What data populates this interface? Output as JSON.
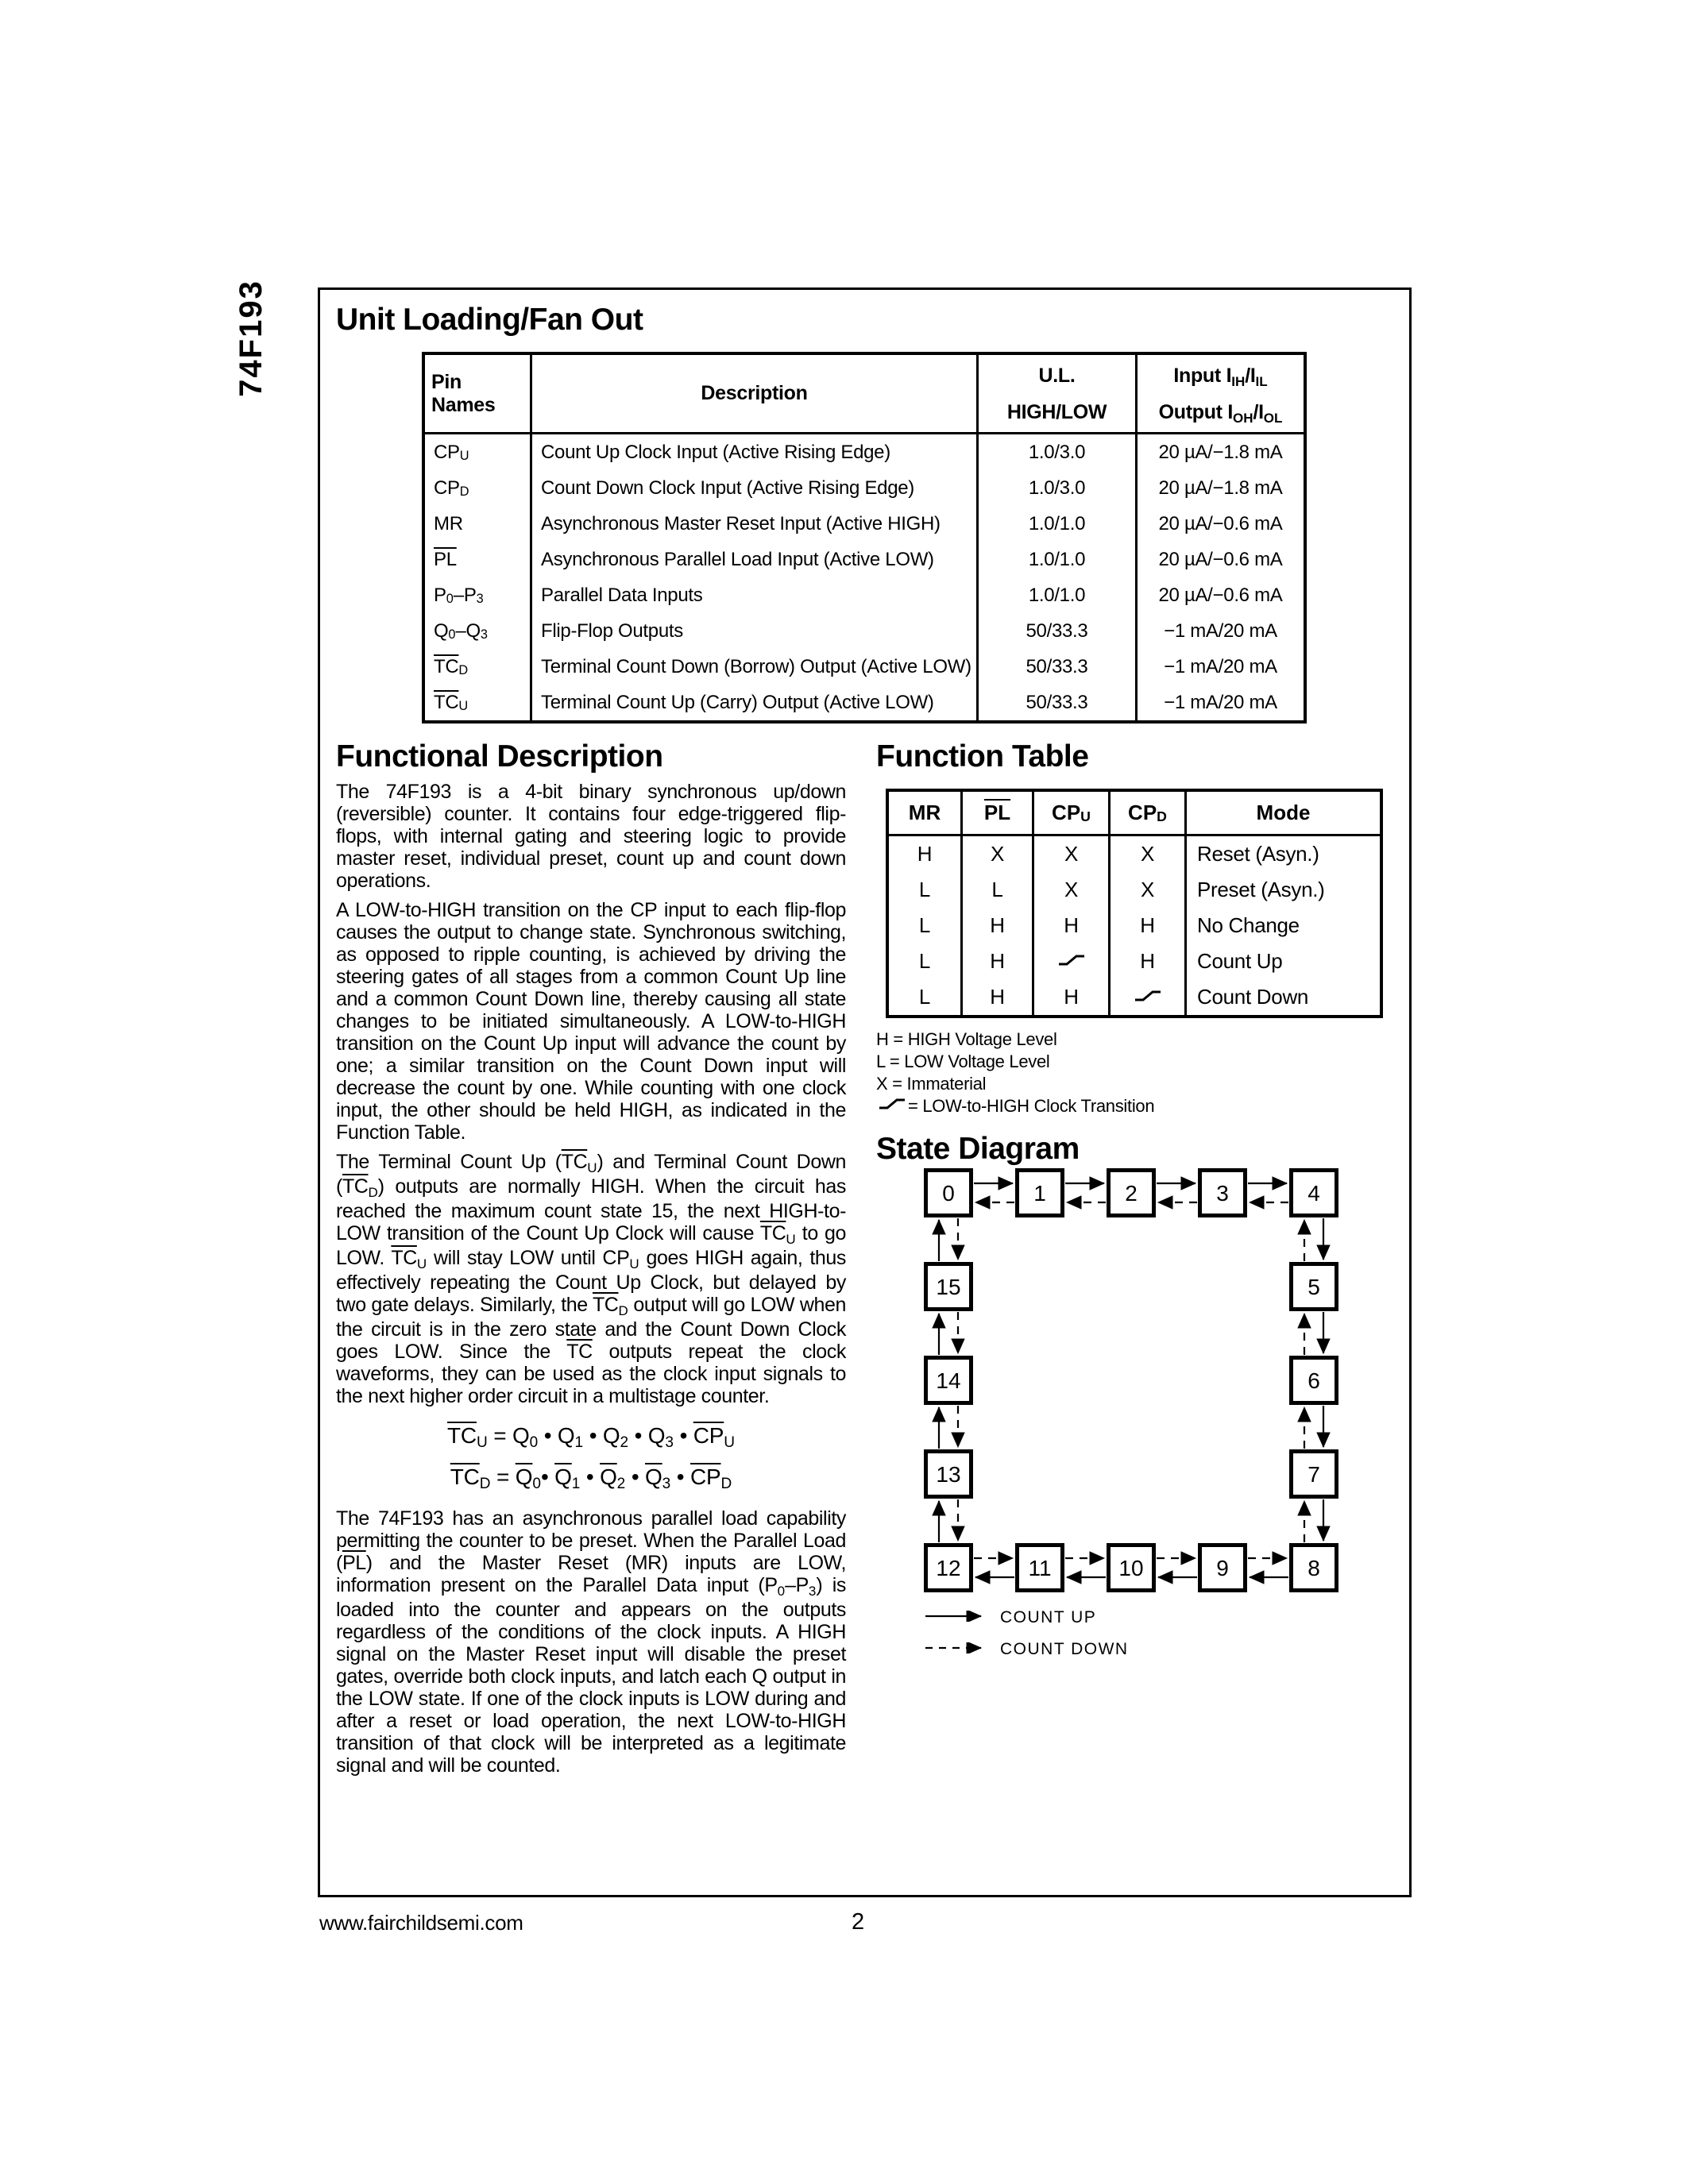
{
  "page": {
    "part_number": "74F193",
    "footer": {
      "website": "www.fairchildsemi.com",
      "page_number": "2"
    }
  },
  "unit_loading": {
    "title": "Unit Loading/Fan Out",
    "header": {
      "pin_names": "Pin Names",
      "description": "Description",
      "ul_line1": "U.L.",
      "ul_line2": "HIGH/LOW",
      "io_line1": [
        {
          "t": "Input I"
        },
        {
          "t": "IH",
          "sub": true
        },
        {
          "t": "/I"
        },
        {
          "t": "IL",
          "sub": true
        }
      ],
      "io_line2": [
        {
          "t": "Output I"
        },
        {
          "t": "OH",
          "sub": true
        },
        {
          "t": "/I"
        },
        {
          "t": "OL",
          "sub": true
        }
      ]
    },
    "rows": [
      {
        "pin": [
          {
            "t": "CP"
          },
          {
            "t": "U",
            "sub": true
          }
        ],
        "description": "Count Up Clock Input (Active Rising Edge)",
        "ul": "1.0/3.0",
        "io": "20 µA/−1.8 mA"
      },
      {
        "pin": [
          {
            "t": "CP"
          },
          {
            "t": "D",
            "sub": true
          }
        ],
        "description": "Count Down Clock Input (Active Rising Edge)",
        "ul": "1.0/3.0",
        "io": "20 µA/−1.8 mA"
      },
      {
        "pin": [
          {
            "t": "MR"
          }
        ],
        "description": "Asynchronous Master Reset Input (Active HIGH)",
        "ul": "1.0/1.0",
        "io": "20 µA/−0.6 mA"
      },
      {
        "pin": [
          {
            "t": "PL",
            "ov": true
          }
        ],
        "description": "Asynchronous Parallel Load Input (Active LOW)",
        "ul": "1.0/1.0",
        "io": "20 µA/−0.6 mA"
      },
      {
        "pin": [
          {
            "t": "P"
          },
          {
            "t": "0",
            "sub": true
          },
          {
            "t": "–P"
          },
          {
            "t": "3",
            "sub": true
          }
        ],
        "description": "Parallel Data Inputs",
        "ul": "1.0/1.0",
        "io": "20 µA/−0.6 mA"
      },
      {
        "pin": [
          {
            "t": "Q"
          },
          {
            "t": "0",
            "sub": true
          },
          {
            "t": "–Q"
          },
          {
            "t": "3",
            "sub": true
          }
        ],
        "description": "Flip-Flop Outputs",
        "ul": "50/33.3",
        "io": "−1 mA/20 mA"
      },
      {
        "pin": [
          {
            "t": "TC",
            "ov": true
          },
          {
            "t": "D",
            "sub": true
          }
        ],
        "description": "Terminal Count Down (Borrow) Output (Active LOW)",
        "ul": "50/33.3",
        "io": "−1 mA/20 mA"
      },
      {
        "pin": [
          {
            "t": "TC",
            "ov": true
          },
          {
            "t": "U",
            "sub": true
          }
        ],
        "description": "Terminal Count Up (Carry) Output (Active LOW)",
        "ul": "50/33.3",
        "io": "−1 mA/20 mA"
      }
    ]
  },
  "functional_description": {
    "title": "Functional Description",
    "paragraphs": [
      [
        {
          "t": "The 74F193 is a 4-bit binary synchronous up/down (reversible) counter. It contains four edge-triggered flip-flops, with internal gating and steering logic to provide master reset, individual preset, count up and count down operations."
        }
      ],
      [
        {
          "t": "A LOW-to-HIGH transition on the CP input to each flip-flop causes the output to change state. Synchronous switching, as opposed to ripple counting, is achieved by driving the steering gates of all stages from a common Count Up line and a common Count Down line, thereby causing all state changes to be initiated simultaneously. A LOW-to-HIGH transition on the Count Up input will advance the count by one; a similar transition on the Count Down input will decrease the count by one. While counting with one clock input, the other should be held HIGH, as indicated in the Function Table."
        }
      ],
      [
        {
          "t": "The Terminal Count Up ("
        },
        {
          "t": "TC",
          "ov": true
        },
        {
          "t": "U",
          "sub": true
        },
        {
          "t": ") and Terminal Count Down ("
        },
        {
          "t": "TC",
          "ov": true
        },
        {
          "t": "D",
          "sub": true
        },
        {
          "t": ") outputs are normally HIGH. When the circuit has reached the maximum count state 15, the next HIGH-to-LOW transition of the Count Up Clock will cause "
        },
        {
          "t": "TC",
          "ov": true
        },
        {
          "t": "U",
          "sub": true
        },
        {
          "t": " to go LOW. "
        },
        {
          "t": "TC",
          "ov": true
        },
        {
          "t": "U",
          "sub": true
        },
        {
          "t": " will stay LOW until CP"
        },
        {
          "t": "U",
          "sub": true
        },
        {
          "t": " goes HIGH again, thus effectively repeating the Count Up Clock, but delayed by two gate delays. Similarly, the "
        },
        {
          "t": "TC",
          "ov": true
        },
        {
          "t": "D",
          "sub": true
        },
        {
          "t": " output will go LOW when the circuit is in the zero state and the Count Down Clock goes LOW. Since the "
        },
        {
          "t": "TC",
          "ov": true
        },
        {
          "t": " outputs repeat the clock waveforms, they can be used as the clock input signals to the next higher order circuit in a multistage counter."
        }
      ]
    ],
    "equations": [
      [
        {
          "t": "TC",
          "ov": true
        },
        {
          "t": "U",
          "sub": true
        },
        {
          "t": " = Q"
        },
        {
          "t": "0",
          "sub": true
        },
        {
          "t": " • Q"
        },
        {
          "t": "1",
          "sub": true
        },
        {
          "t": " • Q"
        },
        {
          "t": "2",
          "sub": true
        },
        {
          "t": " • Q"
        },
        {
          "t": "3",
          "sub": true
        },
        {
          "t": " • "
        },
        {
          "t": "CP",
          "ov": true
        },
        {
          "t": "U",
          "sub": true
        }
      ],
      [
        {
          "t": "TC",
          "ov": true
        },
        {
          "t": "D",
          "sub": true
        },
        {
          "t": " = "
        },
        {
          "t": "Q",
          "ov": true
        },
        {
          "t": "0",
          "sub": true
        },
        {
          "t": "• "
        },
        {
          "t": "Q",
          "ov": true
        },
        {
          "t": "1",
          "sub": true
        },
        {
          "t": " • "
        },
        {
          "t": "Q",
          "ov": true
        },
        {
          "t": "2",
          "sub": true
        },
        {
          "t": " • "
        },
        {
          "t": "Q",
          "ov": true
        },
        {
          "t": "3",
          "sub": true
        },
        {
          "t": " • "
        },
        {
          "t": "CP",
          "ov": true
        },
        {
          "t": "D",
          "sub": true
        }
      ]
    ],
    "final_paragraph": [
      {
        "t": "The 74F193 has an asynchronous parallel load capability permitting the counter to be preset. When the Parallel Load ("
      },
      {
        "t": "PL",
        "ov": true
      },
      {
        "t": ") and the Master Reset (MR) inputs are LOW, information present on the Parallel Data input (P"
      },
      {
        "t": "0",
        "sub": true
      },
      {
        "t": "–P"
      },
      {
        "t": "3",
        "sub": true
      },
      {
        "t": ") is loaded into the counter and appears on the outputs regardless of the conditions of the clock inputs. A HIGH signal on the Master Reset input will disable the preset gates, override both clock inputs, and latch each Q output in the LOW state. If one of the clock inputs is LOW during and after a reset or load operation, the next LOW-to-HIGH transition of that clock will be interpreted as a legitimate signal and will be counted."
      }
    ]
  },
  "function_table": {
    "title": "Function Table",
    "headers": [
      [
        {
          "t": "MR"
        }
      ],
      [
        {
          "t": "PL",
          "ov": true
        }
      ],
      [
        {
          "t": "CP"
        },
        {
          "t": "U",
          "sub": true
        }
      ],
      [
        {
          "t": "CP"
        },
        {
          "t": "D",
          "sub": true
        }
      ],
      [
        {
          "t": "Mode"
        }
      ]
    ],
    "rows": [
      [
        [
          {
            "t": "H"
          }
        ],
        [
          {
            "t": "X"
          }
        ],
        [
          {
            "t": "X"
          }
        ],
        [
          {
            "t": "X"
          }
        ],
        [
          {
            "t": "Reset (Asyn.)"
          }
        ]
      ],
      [
        [
          {
            "t": "L"
          }
        ],
        [
          {
            "t": "L"
          }
        ],
        [
          {
            "t": "X"
          }
        ],
        [
          {
            "t": "X"
          }
        ],
        [
          {
            "t": "Preset (Asyn.)"
          }
        ]
      ],
      [
        [
          {
            "t": "L"
          }
        ],
        [
          {
            "t": "H"
          }
        ],
        [
          {
            "t": "H"
          }
        ],
        [
          {
            "t": "H"
          }
        ],
        [
          {
            "t": "No Change"
          }
        ]
      ],
      [
        [
          {
            "t": "L"
          }
        ],
        [
          {
            "t": "H"
          }
        ],
        [
          {
            "glyph": "clock-rise"
          }
        ],
        [
          {
            "t": "H"
          }
        ],
        [
          {
            "t": "Count Up"
          }
        ]
      ],
      [
        [
          {
            "t": "L"
          }
        ],
        [
          {
            "t": "H"
          }
        ],
        [
          {
            "t": "H"
          }
        ],
        [
          {
            "glyph": "clock-rise"
          }
        ],
        [
          {
            "t": "Count Down"
          }
        ]
      ]
    ],
    "notes": [
      [
        {
          "t": "H = HIGH Voltage Level"
        }
      ],
      [
        {
          "t": "L = LOW Voltage Level"
        }
      ],
      [
        {
          "t": "X = Immaterial"
        }
      ],
      [
        {
          "glyph": "clock-rise"
        },
        {
          "t": " = LOW-to-HIGH Clock Transition"
        }
      ]
    ]
  },
  "state_diagram": {
    "title": "State Diagram",
    "states": [
      "0",
      "1",
      "2",
      "3",
      "4",
      "5",
      "6",
      "7",
      "8",
      "9",
      "10",
      "11",
      "12",
      "13",
      "14",
      "15"
    ],
    "legend": [
      {
        "style": "solid",
        "label": "COUNT UP"
      },
      {
        "style": "dashed",
        "label": "COUNT DOWN"
      }
    ]
  }
}
